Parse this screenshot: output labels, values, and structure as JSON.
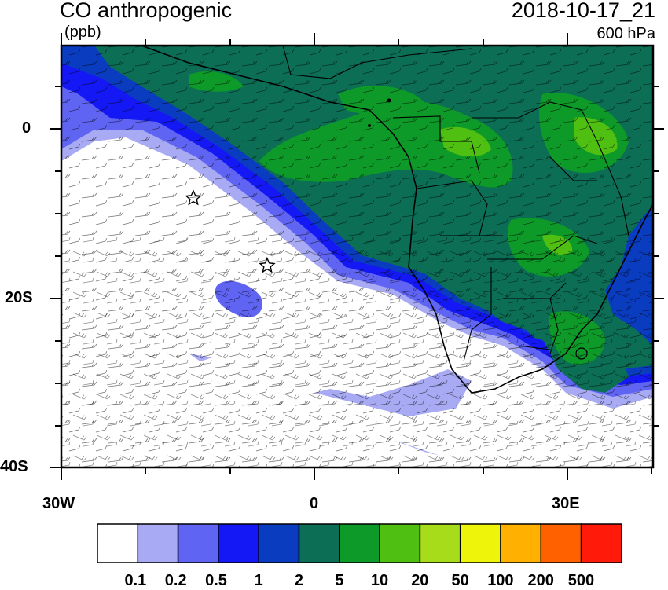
{
  "header": {
    "title": "CO anthropogenic",
    "units": "(ppb)",
    "datetime": "2018-10-17_21",
    "level": "600 hPa"
  },
  "map": {
    "region": "Southern Africa / South Atlantic",
    "lon_range": [
      -30,
      40
    ],
    "lat_range": [
      -40,
      10
    ],
    "lat_labels": [
      {
        "lat": 0,
        "text": "0"
      },
      {
        "lat": -20,
        "text": "20S"
      },
      {
        "lat": -40,
        "text": "40S"
      }
    ],
    "lon_labels": [
      {
        "lon": -30,
        "text": "30W"
      },
      {
        "lon": 0,
        "text": "0"
      },
      {
        "lon": 30,
        "text": "30E"
      }
    ],
    "markers": [
      {
        "name": "star-marker-1",
        "lon": -14.4,
        "lat": -7.9
      },
      {
        "name": "star-marker-2",
        "lon": -5.7,
        "lat": -15.9
      }
    ]
  },
  "colorbar": {
    "colors": [
      "#ffffff",
      "#a8aaf4",
      "#6064f2",
      "#1418f5",
      "#0a3cc0",
      "#0b6e55",
      "#0e9a28",
      "#4fc012",
      "#a6dc1a",
      "#eef40a",
      "#ffb000",
      "#ff6000",
      "#ff1a0a"
    ],
    "labels": [
      "0.1",
      "0.2",
      "0.5",
      "1",
      "2",
      "5",
      "10",
      "20",
      "50",
      "100",
      "200",
      "500"
    ]
  }
}
